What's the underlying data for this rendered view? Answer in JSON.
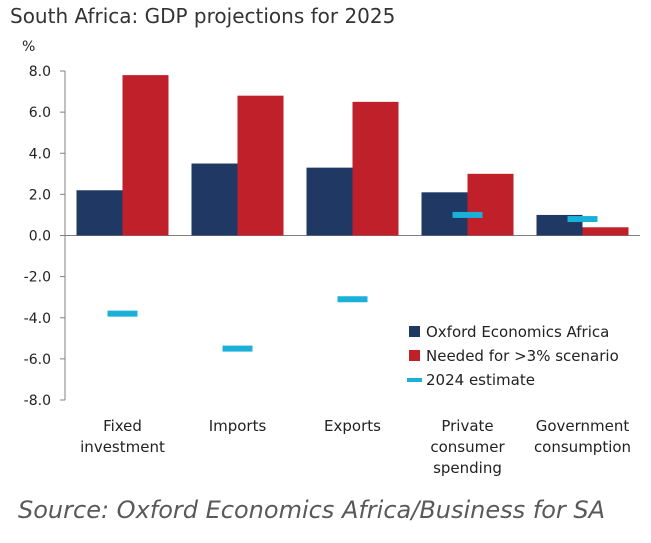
{
  "chart_data": {
    "type": "bar",
    "title": "South Africa: GDP projections for 2025",
    "ylabel": "%",
    "source": "Source: Oxford Economics Africa/Business for SA",
    "ylim": [
      -8,
      8
    ],
    "yticks": [
      "8.0",
      "6.0",
      "4.0",
      "2.0",
      "0.0",
      "-2.0",
      "-4.0",
      "-6.0",
      "-8.0"
    ],
    "ytick_values": [
      8,
      6,
      4,
      2,
      0,
      -2,
      -4,
      -6,
      -8
    ],
    "categories": [
      [
        "Fixed",
        "investment"
      ],
      [
        "Imports"
      ],
      [
        "Exports"
      ],
      [
        "Private",
        "consumer",
        "spending"
      ],
      [
        "Government",
        "consumption"
      ]
    ],
    "series": [
      {
        "name": "Oxford Economics Africa",
        "kind": "bar",
        "color": "#1f3864",
        "values": [
          2.2,
          3.5,
          3.3,
          2.1,
          1.0
        ]
      },
      {
        "name": "Needed for >3% scenario",
        "kind": "bar",
        "color": "#c0202a",
        "values": [
          7.8,
          6.8,
          6.5,
          3.0,
          0.4
        ]
      },
      {
        "name": "2024 estimate",
        "kind": "marker",
        "color": "#1ab0d8",
        "values": [
          -3.8,
          -5.5,
          -3.1,
          1.0,
          0.8
        ]
      }
    ],
    "legend": "lower-right",
    "grid": false
  }
}
